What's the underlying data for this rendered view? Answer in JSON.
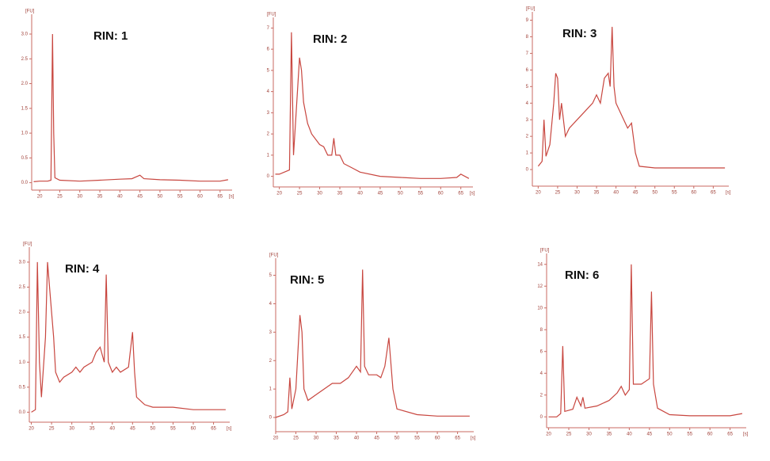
{
  "chart_data": [
    {
      "type": "line",
      "title": "RIN: 1",
      "y_label": "[FU]",
      "x_label": "[s]",
      "color": "#c8463f",
      "x": [
        18.5,
        20,
        22,
        22.8,
        23,
        23.2,
        23.5,
        23.8,
        25,
        30,
        35,
        40,
        43,
        45,
        46,
        50,
        55,
        60,
        65,
        67
      ],
      "values": [
        0.02,
        0.03,
        0.03,
        0.05,
        1.5,
        3.0,
        1.0,
        0.1,
        0.05,
        0.03,
        0.05,
        0.07,
        0.08,
        0.15,
        0.08,
        0.06,
        0.05,
        0.03,
        0.03,
        0.06
      ],
      "xlim": [
        18,
        68
      ],
      "ylim": [
        -0.15,
        3.4
      ],
      "xticks": [
        20,
        25,
        30,
        35,
        40,
        45,
        50,
        55,
        60,
        65
      ],
      "yticks": [
        {
          "value": 0,
          "label": "0.0"
        },
        0.5,
        {
          "value": 1,
          "label": "1.0"
        },
        1.5,
        {
          "value": 2,
          "label": "2.0"
        },
        2.5,
        {
          "value": 3,
          "label": "3.0"
        }
      ]
    },
    {
      "type": "line",
      "title": "RIN: 2",
      "y_label": "[FU]",
      "x_label": "[s]",
      "color": "#c8463f",
      "x": [
        19,
        20,
        22.5,
        23,
        23.5,
        24,
        25,
        25.5,
        26,
        27,
        28,
        30,
        31,
        32,
        33,
        33.5,
        34,
        35,
        36,
        38,
        40,
        45,
        50,
        55,
        60,
        64,
        65,
        67
      ],
      "values": [
        0.1,
        0.1,
        0.3,
        6.8,
        1.0,
        2.5,
        5.6,
        5.0,
        3.5,
        2.5,
        2.0,
        1.5,
        1.4,
        1.0,
        1.0,
        1.8,
        1.0,
        1.0,
        0.6,
        0.4,
        0.2,
        0.0,
        -0.05,
        -0.1,
        -0.1,
        -0.05,
        0.1,
        -0.1
      ],
      "xlim": [
        18.5,
        68
      ],
      "ylim": [
        -0.5,
        7.5
      ],
      "xticks": [
        20,
        25,
        30,
        35,
        40,
        45,
        50,
        55,
        60,
        65
      ],
      "yticks": [
        0,
        1,
        2,
        3,
        4,
        5,
        6,
        7
      ]
    },
    {
      "type": "line",
      "title": "RIN: 3",
      "y_label": "[FU]",
      "x_label": "[s]",
      "color": "#c8463f",
      "x": [
        20,
        21,
        21.5,
        22,
        23,
        24,
        24.5,
        25,
        25.5,
        26,
        27,
        28,
        30,
        32,
        34,
        35,
        36,
        37,
        38,
        38.5,
        39,
        39.5,
        40,
        41,
        42,
        43,
        44,
        45,
        46,
        50,
        55,
        60,
        68
      ],
      "values": [
        0.2,
        0.5,
        3.0,
        0.8,
        1.5,
        4,
        5.8,
        5.5,
        3,
        4,
        2,
        2.5,
        3,
        3.5,
        4,
        4.5,
        4,
        5.5,
        5.8,
        5,
        8.6,
        5,
        4,
        3.5,
        3,
        2.5,
        2.8,
        1,
        0.2,
        0.1,
        0.1,
        0.1,
        0.1
      ],
      "xlim": [
        18.5,
        69
      ],
      "ylim": [
        -1,
        9.5
      ],
      "xticks": [
        20,
        25,
        30,
        35,
        40,
        45,
        50,
        55,
        60,
        65
      ],
      "yticks": [
        0,
        1,
        2,
        3,
        4,
        5,
        6,
        7,
        8,
        9
      ]
    },
    {
      "type": "line",
      "title": "RIN: 4",
      "y_label": "[FU]",
      "x_label": "[s]",
      "color": "#c8463f",
      "x": [
        20,
        21,
        21.5,
        22,
        22.5,
        23.5,
        24,
        25,
        25.5,
        26,
        27,
        28,
        30,
        31,
        32,
        33,
        35,
        36,
        37,
        38,
        38.5,
        39,
        40,
        41,
        42,
        44,
        45,
        45.5,
        46,
        48,
        50,
        55,
        60,
        68
      ],
      "values": [
        0.0,
        0.05,
        3.0,
        1.0,
        0.3,
        1.5,
        3.0,
        2.0,
        1.5,
        0.8,
        0.6,
        0.7,
        0.8,
        0.9,
        0.8,
        0.9,
        1.0,
        1.2,
        1.3,
        1.0,
        2.75,
        1.0,
        0.8,
        0.9,
        0.8,
        0.9,
        1.6,
        0.8,
        0.3,
        0.15,
        0.1,
        0.1,
        0.05,
        0.05
      ],
      "xlim": [
        19.5,
        69
      ],
      "ylim": [
        -0.2,
        3.3
      ],
      "xticks": [
        20,
        25,
        30,
        35,
        40,
        45,
        50,
        55,
        60,
        65
      ],
      "yticks": [
        {
          "value": 0,
          "label": "0.0"
        },
        0.5,
        {
          "value": 1,
          "label": "1.0"
        },
        1.5,
        {
          "value": 2,
          "label": "2.0"
        },
        2.5,
        {
          "value": 3,
          "label": "3.0"
        }
      ]
    },
    {
      "type": "line",
      "title": "RIN: 5",
      "y_label": "[FU]",
      "x_label": "[s]",
      "color": "#c8463f",
      "x": [
        20,
        22,
        23,
        23.5,
        24,
        25,
        26,
        26.5,
        27,
        28,
        30,
        32,
        34,
        36,
        38,
        40,
        41,
        41.5,
        42,
        43,
        45,
        46,
        47,
        48,
        49,
        50,
        55,
        60,
        68
      ],
      "values": [
        0,
        0.1,
        0.2,
        1.4,
        0.3,
        1.0,
        3.6,
        3.0,
        1.0,
        0.6,
        0.8,
        1.0,
        1.2,
        1.2,
        1.4,
        1.8,
        1.6,
        5.2,
        1.8,
        1.5,
        1.5,
        1.4,
        1.8,
        2.8,
        1.0,
        0.3,
        0.1,
        0.05,
        0.05
      ],
      "xlim": [
        20,
        69
      ],
      "ylim": [
        -0.5,
        5.6
      ],
      "xticks": [
        20,
        25,
        30,
        35,
        40,
        45,
        50,
        55,
        60,
        65
      ],
      "yticks": [
        0,
        1,
        2,
        3,
        4,
        5
      ]
    },
    {
      "type": "line",
      "title": "RIN: 6",
      "y_label": "[FU]",
      "x_label": "[s]",
      "color": "#c8463f",
      "x": [
        20,
        22,
        23,
        23.5,
        24,
        26,
        27,
        28,
        28.5,
        29,
        32,
        35,
        37,
        38,
        39,
        40,
        40.5,
        41,
        43,
        45,
        45.5,
        46,
        47,
        50,
        55,
        60,
        65,
        68
      ],
      "values": [
        0,
        0,
        0.3,
        6.5,
        0.5,
        0.7,
        1.8,
        1.0,
        1.8,
        0.8,
        1.0,
        1.5,
        2.2,
        2.8,
        2.0,
        2.5,
        14,
        3,
        3,
        3.5,
        11.5,
        3,
        0.8,
        0.2,
        0.1,
        0.1,
        0.1,
        0.3
      ],
      "xlim": [
        19.5,
        69
      ],
      "ylim": [
        -1,
        15
      ],
      "xticks": [
        20,
        25,
        30,
        35,
        40,
        45,
        50,
        55,
        60,
        65
      ],
      "yticks": [
        0,
        2,
        4,
        6,
        8,
        10,
        12,
        14
      ]
    }
  ]
}
